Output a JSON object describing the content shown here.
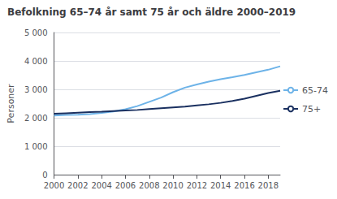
{
  "chart_data": {
    "type": "line",
    "title": "Befolkning 65–74 år samt 75 år och äldre 2000–2019",
    "ylabel": "Personer",
    "x": [
      2000,
      2001,
      2002,
      2003,
      2004,
      2005,
      2006,
      2007,
      2008,
      2009,
      2010,
      2011,
      2012,
      2013,
      2014,
      2015,
      2016,
      2017,
      2018,
      2019
    ],
    "series": [
      {
        "name": "65-74",
        "color": "#6db3e8",
        "values": [
          2080,
          2100,
          2110,
          2130,
          2170,
          2220,
          2300,
          2410,
          2560,
          2710,
          2900,
          3060,
          3170,
          3270,
          3360,
          3430,
          3510,
          3600,
          3690,
          3810
        ]
      },
      {
        "name": "75+",
        "color": "#1a3060",
        "values": [
          2140,
          2160,
          2180,
          2200,
          2215,
          2235,
          2255,
          2275,
          2305,
          2335,
          2365,
          2395,
          2435,
          2475,
          2525,
          2595,
          2670,
          2770,
          2870,
          2950
        ]
      }
    ],
    "xlim": [
      2000,
      2019
    ],
    "xticks": [
      2000,
      2002,
      2004,
      2006,
      2008,
      2010,
      2012,
      2014,
      2016,
      2018
    ],
    "ylim": [
      0,
      5000
    ],
    "yticks": [
      0,
      {
        "value": 1000,
        "label": "1 000"
      },
      {
        "value": 2000,
        "label": "2 000"
      },
      {
        "value": 3000,
        "label": "3 000"
      },
      {
        "value": 4000,
        "label": "4 000"
      },
      {
        "value": 5000,
        "label": "5 000"
      }
    ],
    "grid": true,
    "legend": "right"
  }
}
